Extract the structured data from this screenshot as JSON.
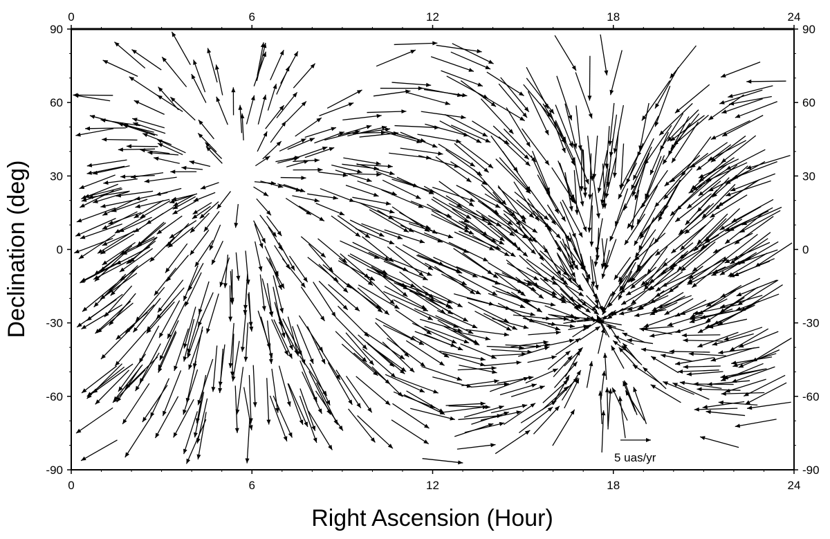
{
  "chart_data": {
    "type": "scatter",
    "subtype": "vector-field",
    "title": "",
    "xlabel": "Right Ascension (Hour)",
    "ylabel": "Declination (deg)",
    "xlim": [
      0,
      24
    ],
    "ylim": [
      -90,
      90
    ],
    "x_ticks": [
      0,
      6,
      12,
      18,
      24
    ],
    "y_ticks": [
      -90,
      -60,
      -30,
      0,
      30,
      60,
      90
    ],
    "x_tick_labels": [
      "0",
      "6",
      "12",
      "18",
      "24"
    ],
    "y_tick_labels": [
      "-90",
      "-60",
      "-30",
      "0",
      "30",
      "60",
      "90"
    ],
    "grid": false,
    "frame": "all-sides-labeled",
    "scale_arrow": {
      "label": "5 uas/yr",
      "magnitude": 5,
      "unit": "uas/yr"
    },
    "field_model": {
      "divergence_pole": {
        "ra": 5.6,
        "dec": 28
      },
      "convergence_pole": {
        "ra": 17.6,
        "dec": -29
      },
      "description": "Dipole proper-motion pattern: vectors stream away from the pole near RA 5.6h, Dec +28 and converge toward the pole near RA 17.6h, Dec -29."
    },
    "arrow_color": "#000000"
  }
}
